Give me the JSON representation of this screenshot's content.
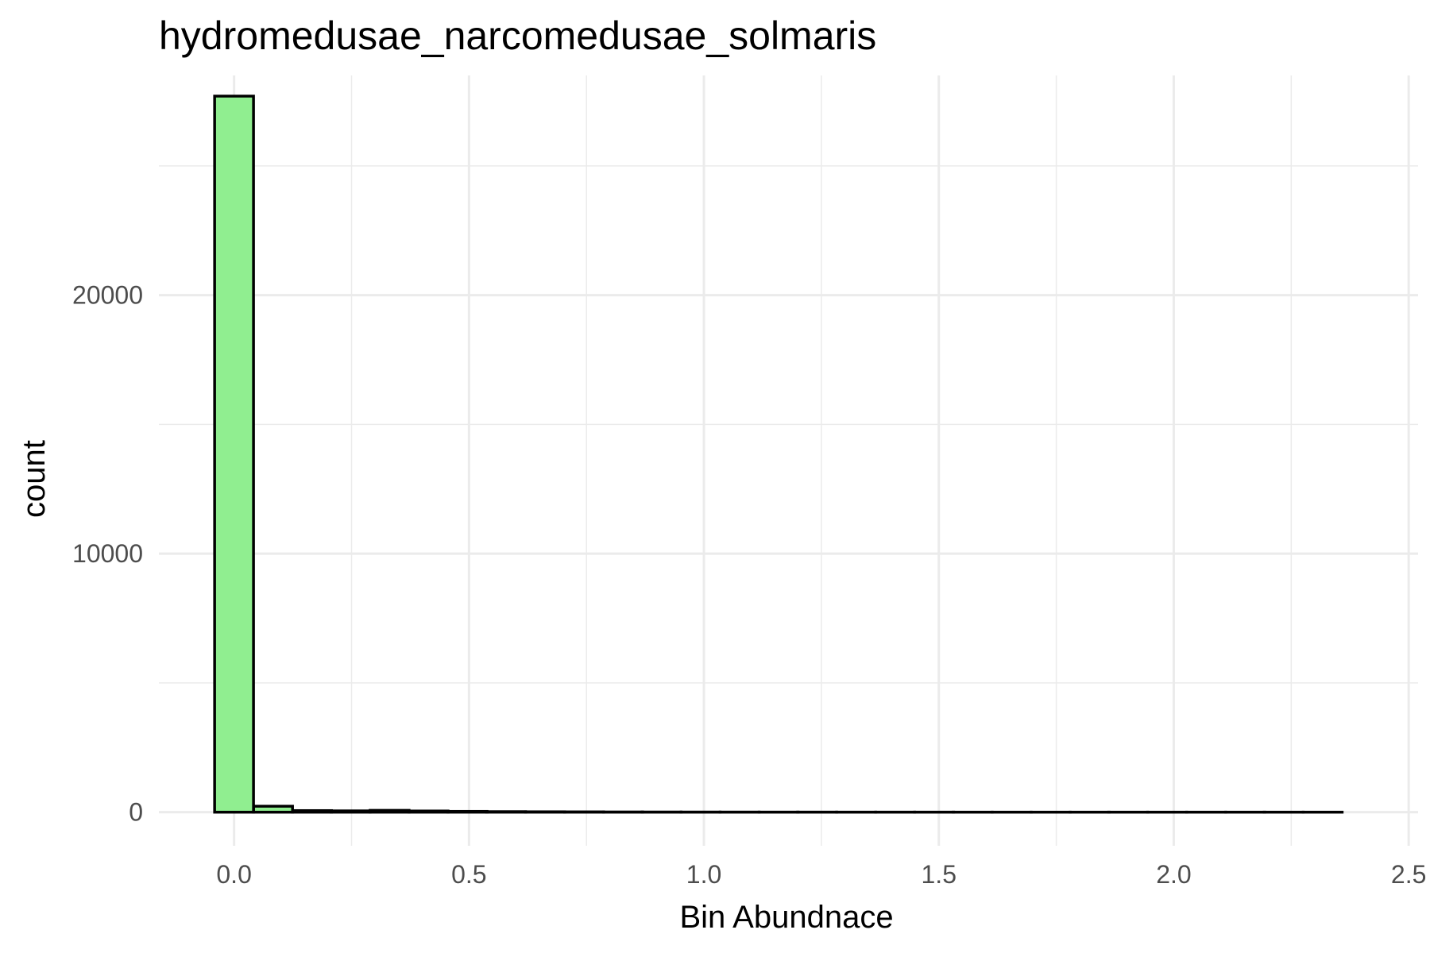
{
  "chart_data": {
    "type": "bar",
    "title": "hydromedusae_narcomedusae_solmaris",
    "xlabel": "Bin Abundnace",
    "ylabel": "count",
    "xlim": [
      -0.16,
      2.52
    ],
    "ylim": [
      -1300,
      28500
    ],
    "x_ticks": [
      0.0,
      0.5,
      1.0,
      1.5,
      2.0,
      2.5
    ],
    "x_tick_labels": [
      "0.0",
      "0.5",
      "1.0",
      "1.5",
      "2.0",
      "2.5"
    ],
    "y_ticks": [
      0,
      10000,
      20000
    ],
    "y_tick_labels": [
      "0",
      "10000",
      "20000"
    ],
    "grid": true,
    "fill_color": "#90EE90",
    "edge_color": "#000000",
    "bin_width": 0.0828,
    "bins": [
      {
        "x": 0.0,
        "count": 27700
      },
      {
        "x": 0.083,
        "count": 230
      },
      {
        "x": 0.166,
        "count": 60
      },
      {
        "x": 0.248,
        "count": 50
      },
      {
        "x": 0.331,
        "count": 70
      },
      {
        "x": 0.414,
        "count": 45
      },
      {
        "x": 0.497,
        "count": 30
      },
      {
        "x": 0.579,
        "count": 20
      },
      {
        "x": 0.662,
        "count": 15
      },
      {
        "x": 0.745,
        "count": 12
      },
      {
        "x": 0.828,
        "count": 8
      },
      {
        "x": 0.91,
        "count": 6
      },
      {
        "x": 0.993,
        "count": 5
      },
      {
        "x": 1.076,
        "count": 4
      },
      {
        "x": 1.159,
        "count": 3
      },
      {
        "x": 1.241,
        "count": 3
      },
      {
        "x": 1.324,
        "count": 2
      },
      {
        "x": 1.407,
        "count": 2
      },
      {
        "x": 1.49,
        "count": 2
      },
      {
        "x": 1.572,
        "count": 1
      },
      {
        "x": 1.655,
        "count": 1
      },
      {
        "x": 1.738,
        "count": 1
      },
      {
        "x": 1.821,
        "count": 1
      },
      {
        "x": 1.903,
        "count": 1
      },
      {
        "x": 1.986,
        "count": 1
      },
      {
        "x": 2.069,
        "count": 1
      },
      {
        "x": 2.152,
        "count": 1
      },
      {
        "x": 2.234,
        "count": 1
      },
      {
        "x": 2.317,
        "count": 1
      }
    ]
  }
}
